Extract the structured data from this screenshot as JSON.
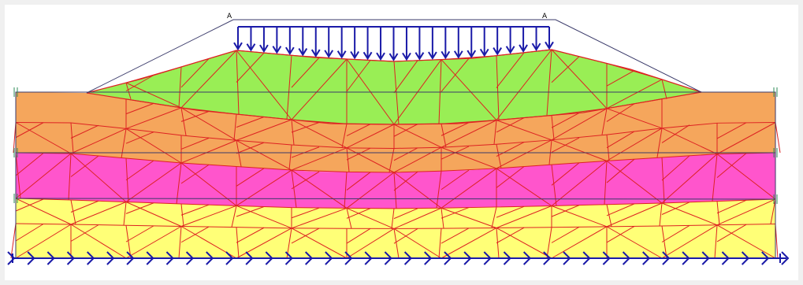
{
  "colors": {
    "background": "#f0f0f0",
    "canvas": "#ffffff",
    "embankment_fill": "#99ee55",
    "layer1_fill": "#f5a65c",
    "layer2_fill": "#ff55cc",
    "layer3_fill": "#ffff77",
    "mesh_line": "#dd2222",
    "geometry_line": "#3a3a6a",
    "load_color": "#1a1aa8",
    "fixity_color": "#1a1aa8",
    "node_marker": "#2e8b57"
  },
  "layers": [
    {
      "name": "embankment",
      "color_key": "embankment_fill"
    },
    {
      "name": "soil-layer-1",
      "color_key": "layer1_fill"
    },
    {
      "name": "soil-layer-2",
      "color_key": "layer2_fill"
    },
    {
      "name": "soil-layer-3",
      "color_key": "layer3_fill"
    }
  ],
  "load": {
    "type": "distributed-load",
    "start_label": "A",
    "end_label": "A",
    "arrow_count": 25
  },
  "fixities": {
    "type": "horizontal-fixity",
    "symbol_count": 40
  },
  "mesh": {
    "type": "triangular-finite-element-mesh"
  }
}
